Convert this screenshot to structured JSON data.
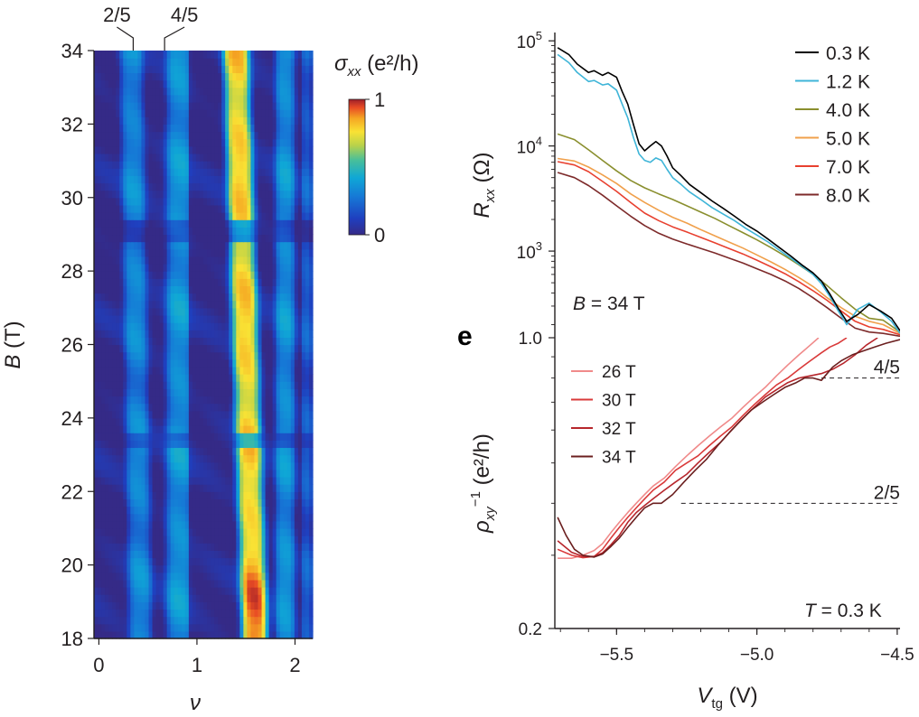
{
  "chart_data": [
    {
      "type": "heatmap",
      "xlabel": "ν",
      "ylabel_italic": "B",
      "ylabel_unit": " (T)",
      "xlim": [
        -0.05,
        2.18
      ],
      "ylim": [
        18,
        34
      ],
      "x_ticks": [
        "0",
        "1",
        "2"
      ],
      "x_tick_values": [
        0,
        1,
        2
      ],
      "y_ticks": [
        "18",
        "20",
        "22",
        "24",
        "26",
        "28",
        "30",
        "32",
        "34"
      ],
      "y_tick_values": [
        18,
        20,
        22,
        24,
        26,
        28,
        30,
        32,
        34
      ],
      "top_labels": [
        {
          "text": "2/5",
          "nu": 0.35
        },
        {
          "text": "4/5",
          "nu": 0.67
        }
      ],
      "colorbar": {
        "label_main": "σ",
        "label_sub": "xx",
        "label_unit": " (e²/h)",
        "min_label": "0",
        "max_label": "1",
        "range": [
          0,
          1
        ]
      },
      "bands": [
        {
          "center": 0.38,
          "width": 0.22,
          "value": 0.32
        },
        {
          "center": 0.82,
          "width": 0.25,
          "value": 0.36
        },
        {
          "center": 1.52,
          "width": 0.25,
          "value": 0.78
        },
        {
          "center": 1.9,
          "width": 0.19,
          "value": 0.35
        },
        {
          "center": 2.12,
          "width": 0.1,
          "value": 0.2
        }
      ],
      "feature_fields": [
        {
          "B": 29.1,
          "width": 0.25
        },
        {
          "B": 23.4,
          "width": 0.18
        }
      ]
    },
    {
      "type": "line",
      "xlabel": "",
      "ylabel_main": "R",
      "ylabel_sub": "xx",
      "ylabel_unit": " (Ω)",
      "yscale": "log",
      "xlim": [
        -5.72,
        -4.49
      ],
      "ylim": [
        150,
        120000
      ],
      "y_ticks": [
        {
          "base": "10",
          "exp": "5",
          "value": 100000
        },
        {
          "base": "10",
          "exp": "4",
          "value": 10000
        },
        {
          "base": "10",
          "exp": "3",
          "value": 1000
        }
      ],
      "annotation_italic": "B",
      "annotation_rest": " = 34 T",
      "legend_position": "top-right",
      "series": [
        {
          "name": "0.3 K",
          "color": "#000000",
          "x": [
            -5.71,
            -5.67,
            -5.64,
            -5.6,
            -5.58,
            -5.55,
            -5.53,
            -5.5,
            -5.48,
            -5.46,
            -5.44,
            -5.42,
            -5.4,
            -5.38,
            -5.36,
            -5.34,
            -5.32,
            -5.3,
            -5.27,
            -5.24,
            -5.2,
            -5.16,
            -5.12,
            -5.08,
            -5.04,
            -5.0,
            -4.96,
            -4.92,
            -4.88,
            -4.84,
            -4.8,
            -4.77,
            -4.74,
            -4.71,
            -4.68,
            -4.64,
            -4.6,
            -4.56,
            -4.52,
            -4.49
          ],
          "y": [
            86000,
            74000,
            60000,
            50000,
            52000,
            47000,
            50000,
            45000,
            33000,
            25000,
            16000,
            10500,
            9000,
            10000,
            11000,
            10000,
            8000,
            6200,
            5200,
            4300,
            3600,
            3000,
            2550,
            2150,
            1800,
            1550,
            1300,
            1080,
            900,
            740,
            620,
            520,
            390,
            285,
            215,
            250,
            310,
            270,
            230,
            175
          ]
        },
        {
          "name": "1.2 K",
          "color": "#3fb5d8",
          "x": [
            -5.71,
            -5.67,
            -5.64,
            -5.6,
            -5.58,
            -5.55,
            -5.53,
            -5.5,
            -5.48,
            -5.46,
            -5.44,
            -5.42,
            -5.4,
            -5.38,
            -5.36,
            -5.34,
            -5.32,
            -5.3,
            -5.27,
            -5.24,
            -5.2,
            -5.16,
            -5.12,
            -5.08,
            -5.04,
            -5.0,
            -4.96,
            -4.92,
            -4.88,
            -4.84,
            -4.8,
            -4.77,
            -4.74,
            -4.71,
            -4.68,
            -4.64,
            -4.6,
            -4.56,
            -4.52,
            -4.49
          ],
          "y": [
            74000,
            62000,
            50000,
            41000,
            42000,
            38000,
            39000,
            34000,
            25000,
            18500,
            12000,
            8400,
            7300,
            7000,
            7700,
            7300,
            6000,
            5000,
            4300,
            3650,
            3100,
            2600,
            2250,
            1950,
            1650,
            1420,
            1220,
            1020,
            860,
            720,
            600,
            490,
            370,
            270,
            200,
            280,
            320,
            265,
            215,
            165
          ]
        },
        {
          "name": "4.0 K",
          "color": "#8a8f2e",
          "x": [
            -5.71,
            -5.65,
            -5.6,
            -5.55,
            -5.5,
            -5.45,
            -5.4,
            -5.35,
            -5.3,
            -5.25,
            -5.2,
            -5.15,
            -5.1,
            -5.05,
            -5.0,
            -4.95,
            -4.9,
            -4.85,
            -4.8,
            -4.75,
            -4.7,
            -4.65,
            -4.6,
            -4.55,
            -4.49
          ],
          "y": [
            13000,
            11500,
            9200,
            7300,
            5800,
            4700,
            4000,
            3500,
            3100,
            2700,
            2350,
            2050,
            1750,
            1500,
            1280,
            1080,
            900,
            740,
            600,
            470,
            360,
            280,
            230,
            220,
            170
          ]
        },
        {
          "name": "5.0 K",
          "color": "#f0a04b",
          "x": [
            -5.71,
            -5.65,
            -5.6,
            -5.55,
            -5.5,
            -5.45,
            -5.4,
            -5.35,
            -5.3,
            -5.25,
            -5.2,
            -5.15,
            -5.1,
            -5.05,
            -5.0,
            -4.95,
            -4.9,
            -4.85,
            -4.8,
            -4.75,
            -4.7,
            -4.65,
            -4.6,
            -4.55,
            -4.49
          ],
          "y": [
            7600,
            7200,
            6300,
            5300,
            4400,
            3500,
            2900,
            2450,
            2100,
            1850,
            1600,
            1400,
            1220,
            1070,
            920,
            790,
            670,
            560,
            460,
            360,
            290,
            240,
            215,
            200,
            165
          ]
        },
        {
          "name": "7.0 K",
          "color": "#e8402f",
          "x": [
            -5.71,
            -5.65,
            -5.6,
            -5.55,
            -5.5,
            -5.45,
            -5.4,
            -5.35,
            -5.3,
            -5.25,
            -5.2,
            -5.15,
            -5.1,
            -5.05,
            -5.0,
            -4.95,
            -4.9,
            -4.85,
            -4.8,
            -4.75,
            -4.7,
            -4.65,
            -4.6,
            -4.55,
            -4.49
          ],
          "y": [
            7100,
            6600,
            5700,
            4600,
            3700,
            2900,
            2300,
            1950,
            1700,
            1520,
            1350,
            1200,
            1060,
            940,
            820,
            710,
            610,
            510,
            420,
            340,
            270,
            215,
            190,
            180,
            160
          ]
        },
        {
          "name": "8.0 K",
          "color": "#7d2a2a",
          "x": [
            -5.71,
            -5.65,
            -5.6,
            -5.55,
            -5.5,
            -5.45,
            -5.4,
            -5.35,
            -5.3,
            -5.25,
            -5.2,
            -5.15,
            -5.1,
            -5.05,
            -5.0,
            -4.95,
            -4.9,
            -4.85,
            -4.8,
            -4.75,
            -4.7,
            -4.65,
            -4.6,
            -4.55,
            -4.49
          ],
          "y": [
            5600,
            5000,
            4200,
            3400,
            2700,
            2150,
            1750,
            1480,
            1300,
            1170,
            1060,
            960,
            860,
            770,
            680,
            600,
            520,
            440,
            360,
            290,
            230,
            185,
            170,
            165,
            155
          ]
        }
      ]
    },
    {
      "type": "line",
      "panel_label": "e",
      "xlabel_main": "V",
      "xlabel_sub": "tg",
      "xlabel_unit": " (V)",
      "ylabel_main": "ρ",
      "ylabel_sub": "xy",
      "ylabel_sup": "−1",
      "ylabel_unit": " (e²/h)",
      "yscale": "log",
      "xlim": [
        -5.72,
        -4.49
      ],
      "ylim": [
        0.2,
        1.0
      ],
      "x_ticks": [
        {
          "label": "−5.5",
          "value": -5.5
        },
        {
          "label": "−5.0",
          "value": -5.0
        },
        {
          "label": "−4.5",
          "value": -4.5
        }
      ],
      "y_ticks": [
        {
          "label": "1.0",
          "value": 1.0
        },
        {
          "label": "0.2",
          "value": 0.2
        }
      ],
      "reference_lines": [
        {
          "label": "4/5",
          "value": 0.8,
          "x_start": -4.77
        },
        {
          "label": "2/5",
          "value": 0.4,
          "x_start": -5.27
        }
      ],
      "annotation_italic": "T",
      "annotation_rest": " = 0.3 K",
      "legend_position": "top-left",
      "series": [
        {
          "name": "26 T",
          "color": "#f08a8a",
          "x": [
            -5.71,
            -5.66,
            -5.62,
            -5.58,
            -5.55,
            -5.52,
            -5.49,
            -5.46,
            -5.43,
            -5.4,
            -5.37,
            -5.33,
            -5.29,
            -5.25,
            -5.21,
            -5.17,
            -5.13,
            -5.09,
            -5.05,
            -5.01,
            -4.97,
            -4.93,
            -4.89,
            -4.85,
            -4.81,
            -4.78
          ],
          "y": [
            0.295,
            0.295,
            0.3,
            0.308,
            0.32,
            0.34,
            0.36,
            0.38,
            0.4,
            0.42,
            0.44,
            0.46,
            0.49,
            0.52,
            0.55,
            0.58,
            0.61,
            0.64,
            0.68,
            0.72,
            0.76,
            0.81,
            0.86,
            0.91,
            0.96,
            1.0
          ]
        },
        {
          "name": "30 T",
          "color": "#d93a3a",
          "x": [
            -5.71,
            -5.66,
            -5.62,
            -5.58,
            -5.55,
            -5.52,
            -5.49,
            -5.46,
            -5.43,
            -5.4,
            -5.37,
            -5.33,
            -5.29,
            -5.25,
            -5.21,
            -5.17,
            -5.13,
            -5.09,
            -5.05,
            -5.01,
            -4.97,
            -4.93,
            -4.89,
            -4.85,
            -4.81,
            -4.77,
            -4.74,
            -4.71,
            -4.68
          ],
          "y": [
            0.31,
            0.3,
            0.296,
            0.298,
            0.31,
            0.33,
            0.35,
            0.37,
            0.39,
            0.41,
            0.43,
            0.45,
            0.48,
            0.5,
            0.52,
            0.55,
            0.58,
            0.61,
            0.65,
            0.69,
            0.73,
            0.77,
            0.8,
            0.84,
            0.88,
            0.92,
            0.95,
            0.97,
            1.0
          ]
        },
        {
          "name": "32 T",
          "color": "#b7262c",
          "x": [
            -5.71,
            -5.66,
            -5.62,
            -5.58,
            -5.55,
            -5.52,
            -5.49,
            -5.46,
            -5.43,
            -5.4,
            -5.37,
            -5.33,
            -5.29,
            -5.25,
            -5.21,
            -5.17,
            -5.13,
            -5.09,
            -5.05,
            -5.01,
            -4.97,
            -4.93,
            -4.89,
            -4.85,
            -4.81,
            -4.77,
            -4.73,
            -4.69,
            -4.65,
            -4.61,
            -4.57
          ],
          "y": [
            0.325,
            0.305,
            0.298,
            0.298,
            0.304,
            0.318,
            0.335,
            0.36,
            0.38,
            0.395,
            0.41,
            0.43,
            0.45,
            0.47,
            0.5,
            0.53,
            0.56,
            0.6,
            0.64,
            0.68,
            0.72,
            0.75,
            0.78,
            0.8,
            0.81,
            0.82,
            0.84,
            0.87,
            0.91,
            0.96,
            1.0
          ]
        },
        {
          "name": "34 T",
          "color": "#6b1f1f",
          "x": [
            -5.71,
            -5.68,
            -5.65,
            -5.62,
            -5.58,
            -5.55,
            -5.52,
            -5.49,
            -5.46,
            -5.43,
            -5.4,
            -5.37,
            -5.34,
            -5.3,
            -5.26,
            -5.22,
            -5.18,
            -5.14,
            -5.1,
            -5.06,
            -5.02,
            -4.98,
            -4.94,
            -4.9,
            -4.86,
            -4.83,
            -4.8,
            -4.77,
            -4.75,
            -4.73,
            -4.7,
            -4.66,
            -4.62,
            -4.58,
            -4.54,
            -4.49
          ],
          "y": [
            0.37,
            0.335,
            0.31,
            0.3,
            0.297,
            0.302,
            0.315,
            0.33,
            0.35,
            0.37,
            0.39,
            0.4,
            0.4,
            0.42,
            0.45,
            0.48,
            0.51,
            0.55,
            0.59,
            0.63,
            0.67,
            0.7,
            0.73,
            0.76,
            0.78,
            0.8,
            0.8,
            0.79,
            0.82,
            0.85,
            0.88,
            0.91,
            0.93,
            0.95,
            0.97,
            0.99
          ]
        }
      ]
    }
  ]
}
